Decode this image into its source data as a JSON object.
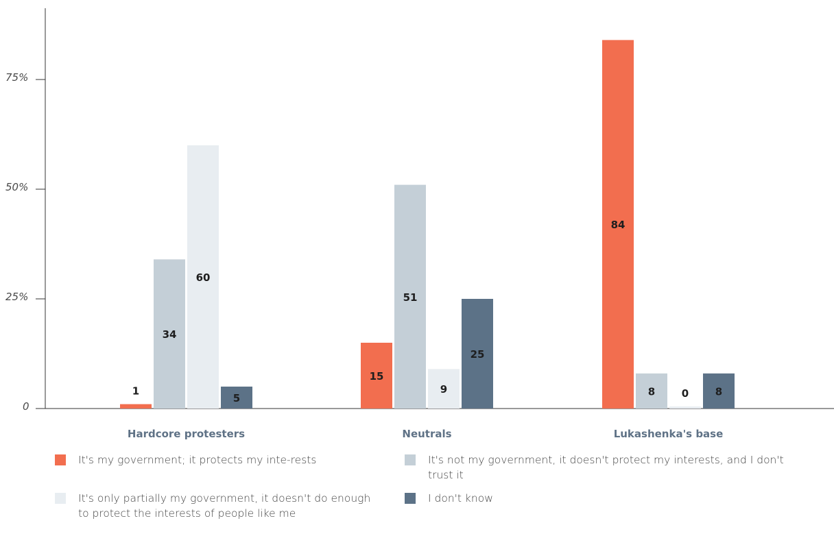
{
  "chart_data": {
    "type": "bar",
    "categories": [
      "Hardcore protesters",
      "Neutrals",
      "Lukashenka's base"
    ],
    "series": [
      {
        "name": "It's my government; it protects my interests",
        "color": "#f26e4f",
        "values": [
          1,
          15,
          84
        ],
        "display": [
          "1",
          "15",
          "84"
        ]
      },
      {
        "name": "It's not my government, it doesn't protect my interests, and I don't trust it",
        "color": "#c4cfd7",
        "values": [
          34,
          51,
          8
        ],
        "display": [
          "34",
          "51",
          "8"
        ]
      },
      {
        "name": "It's only partially my government, it doesn't do enough to protect the interests of people like me",
        "color": "#e8edf1",
        "values": [
          60,
          9,
          0
        ],
        "display": [
          "60",
          "9",
          "0"
        ]
      },
      {
        "name": "I don't know",
        "color": "#5c7287",
        "values": [
          5,
          25,
          8
        ],
        "display": [
          "5",
          "25",
          "8"
        ]
      }
    ],
    "ylim": [
      0,
      90
    ],
    "yticks": [
      {
        "value": 0,
        "label": "0"
      },
      {
        "value": 25,
        "label": "25%"
      },
      {
        "value": 50,
        "label": "50%"
      },
      {
        "value": 75,
        "label": "75%"
      }
    ],
    "grid": false,
    "legend_position": "bottom"
  },
  "legend": {
    "item0": "It's my government; it protects my inte-rests",
    "item1": "It's not my government, it doesn't protect my interests, and I don't trust it",
    "item2": "It's only partially my government, it doesn't do enough to protect the interests of people like me",
    "item3": "I don't know"
  }
}
